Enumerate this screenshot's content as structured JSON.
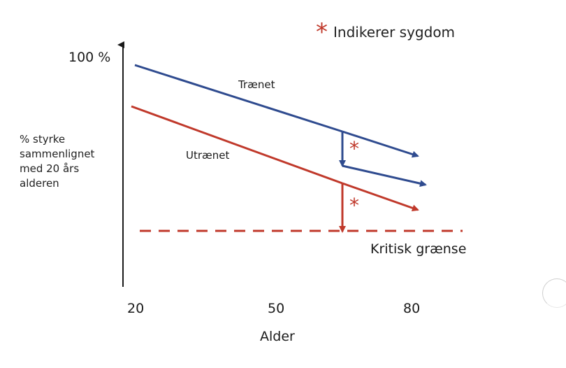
{
  "legend": {
    "symbol": "*",
    "text": "Indikerer sygdom"
  },
  "y_axis": {
    "top_label": "100 %",
    "label_lines": [
      "% styrke",
      "sammenlignet",
      "med 20 års",
      "alderen"
    ]
  },
  "x_axis": {
    "ticks": [
      "20",
      "50",
      "80"
    ],
    "title": "Alder"
  },
  "series": {
    "trained_label": "Trænet",
    "untrained_label": "Utrænet"
  },
  "threshold_label": "Kritisk grænse",
  "disease_marker": "*",
  "colors": {
    "trained": "#2f4b8f",
    "untrained": "#c0392b",
    "axis": "#1a1a1a",
    "threshold": "#c0392b"
  }
}
